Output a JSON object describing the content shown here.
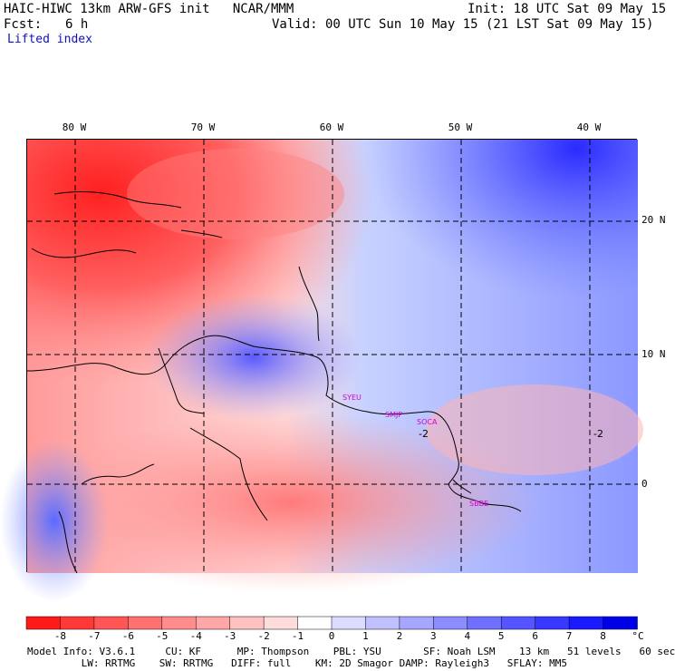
{
  "header": {
    "title": "HAIC-HIWC 13km ARW-GFS init   NCAR/MMM",
    "init": "Init: 18 UTC Sat 09 May 15",
    "fcst_label": "Fcst:",
    "fcst_value": "6 h",
    "valid": "Valid: 00 UTC Sun 10 May 15 (21 LST Sat 09 May 15)",
    "field": "Lifted index"
  },
  "map": {
    "lon_labels": [
      "80 W",
      "70 W",
      "60 W",
      "50 W",
      "40 W"
    ],
    "lat_labels": [
      "20 N",
      "10 N",
      "0"
    ],
    "stations": [
      "SYEU",
      "SMJP",
      "SOCA",
      "SBBE"
    ],
    "contour_labels": [
      "-2",
      "-2"
    ]
  },
  "colorbar": {
    "labels": [
      "-8",
      "-7",
      "-6",
      "-5",
      "-4",
      "-3",
      "-2",
      "-1",
      "0",
      "1",
      "2",
      "3",
      "4",
      "5",
      "6",
      "7",
      "8"
    ],
    "unit": "°C",
    "colors": [
      "#ff1a1a",
      "#ff3838",
      "#ff5555",
      "#ff7070",
      "#ff8c8c",
      "#ffa6a6",
      "#ffc0c0",
      "#ffdcdc",
      "#ffffff",
      "#dcdcff",
      "#c0c0ff",
      "#a6a6ff",
      "#8c8cff",
      "#7070ff",
      "#5555ff",
      "#3838ff",
      "#1a1aff",
      "#0000e6"
    ]
  },
  "model_info": {
    "line1": "Model Info: V3.6.1     CU: KF      MP: Thompson    PBL: YSU       SF: Noah LSM    13 km   51 levels   60 sec",
    "line2": "         LW: RRTMG    SW: RRTMG   DIFF: full    KM: 2D Smagor DAMP: Rayleigh3   SFLAY: MM5"
  }
}
